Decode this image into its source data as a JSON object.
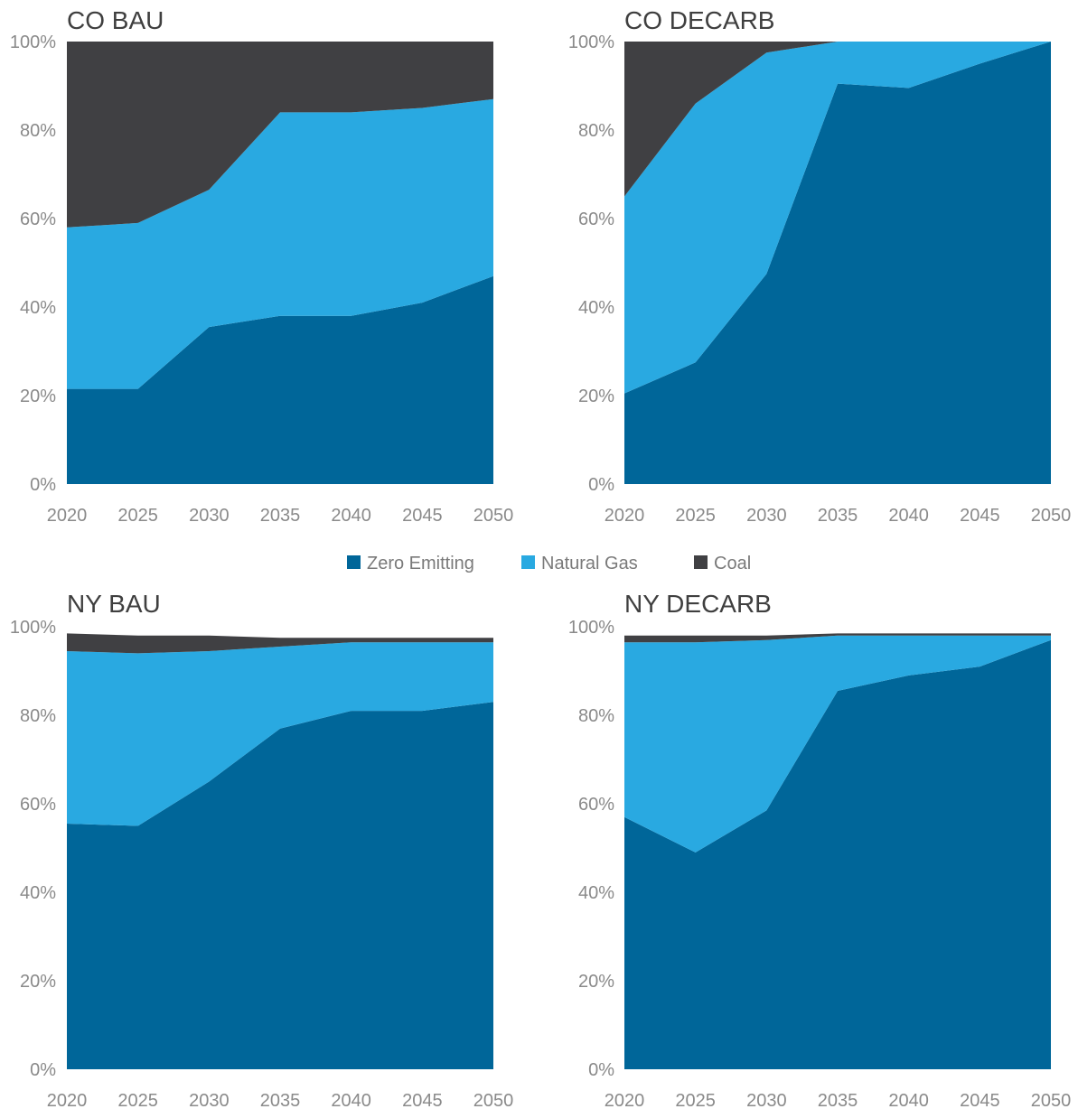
{
  "colors": {
    "zero_emitting": "#006699",
    "natural_gas": "#29a9e1",
    "coal": "#404043"
  },
  "legend": [
    {
      "key": "zero_emitting",
      "label": "Zero Emitting"
    },
    {
      "key": "natural_gas",
      "label": "Natural Gas"
    },
    {
      "key": "coal",
      "label": "Coal"
    }
  ],
  "chart_data": [
    {
      "type": "area",
      "stacked": true,
      "title": "CO BAU",
      "x": [
        2020,
        2025,
        2030,
        2035,
        2040,
        2045,
        2050
      ],
      "ylim": [
        0,
        100
      ],
      "yticks": [
        "0%",
        "20%",
        "40%",
        "60%",
        "80%",
        "100%"
      ],
      "series": [
        {
          "name": "Zero Emitting",
          "key": "zero_emitting",
          "values": [
            21.5,
            21.5,
            35.5,
            38,
            38,
            41,
            47
          ]
        },
        {
          "name": "Natural Gas",
          "key": "natural_gas",
          "values": [
            36.5,
            37.5,
            31,
            46,
            46,
            44,
            40
          ]
        },
        {
          "name": "Coal",
          "key": "coal",
          "values": [
            42,
            41,
            33.5,
            16,
            16,
            15,
            13
          ]
        }
      ]
    },
    {
      "type": "area",
      "stacked": true,
      "title": "CO DECARB",
      "x": [
        2020,
        2025,
        2030,
        2035,
        2040,
        2045,
        2050
      ],
      "ylim": [
        0,
        100
      ],
      "yticks": [
        "0%",
        "20%",
        "40%",
        "60%",
        "80%",
        "100%"
      ],
      "series": [
        {
          "name": "Zero Emitting",
          "key": "zero_emitting",
          "values": [
            20.5,
            27.5,
            47.5,
            90.5,
            89.5,
            95,
            100
          ]
        },
        {
          "name": "Natural Gas",
          "key": "natural_gas",
          "values": [
            44.5,
            58.5,
            50,
            9.5,
            10.5,
            5,
            0
          ]
        },
        {
          "name": "Coal",
          "key": "coal",
          "values": [
            35,
            14,
            2.5,
            0,
            0,
            0,
            0
          ]
        }
      ]
    },
    {
      "type": "area",
      "stacked": true,
      "title": "NY BAU",
      "x": [
        2020,
        2025,
        2030,
        2035,
        2040,
        2045,
        2050
      ],
      "ylim": [
        0,
        100
      ],
      "yticks": [
        "0%",
        "20%",
        "40%",
        "60%",
        "80%",
        "100%"
      ],
      "series": [
        {
          "name": "Zero Emitting",
          "key": "zero_emitting",
          "values": [
            55.5,
            55,
            65,
            77,
            81,
            81,
            83
          ]
        },
        {
          "name": "Natural Gas",
          "key": "natural_gas",
          "values": [
            39,
            39,
            29.5,
            18.5,
            15.5,
            15.5,
            13.5
          ]
        },
        {
          "name": "Coal",
          "key": "coal",
          "values": [
            4,
            4,
            3.5,
            2,
            1,
            1,
            1
          ]
        }
      ]
    },
    {
      "type": "area",
      "stacked": true,
      "title": "NY DECARB",
      "x": [
        2020,
        2025,
        2030,
        2035,
        2040,
        2045,
        2050
      ],
      "ylim": [
        0,
        100
      ],
      "yticks": [
        "0%",
        "20%",
        "40%",
        "60%",
        "80%",
        "100%"
      ],
      "series": [
        {
          "name": "Zero Emitting",
          "key": "zero_emitting",
          "values": [
            57,
            49,
            58.5,
            85.5,
            89,
            91,
            97
          ]
        },
        {
          "name": "Natural Gas",
          "key": "natural_gas",
          "values": [
            39.5,
            47.5,
            38.5,
            12.5,
            9,
            7,
            1
          ]
        },
        {
          "name": "Coal",
          "key": "coal",
          "values": [
            1.5,
            1.5,
            1,
            0.5,
            0.5,
            0.5,
            0.5
          ]
        }
      ]
    }
  ]
}
